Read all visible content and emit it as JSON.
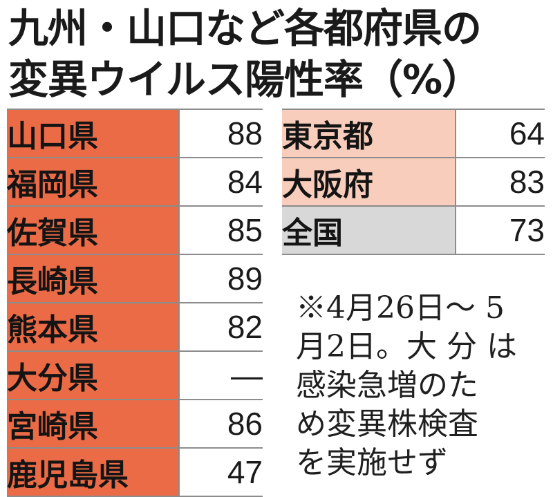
{
  "title": {
    "line1": "九州・山口など各都府県の",
    "line2": "変異ウイルス陽性率（%）"
  },
  "colors": {
    "kyushu_fill": "#ec6b47",
    "metro_fill": "#f8cdbb",
    "national_fill": "#d8d8d8",
    "rule": "#8c8c8c"
  },
  "left_table": [
    {
      "name": "山口県",
      "value": "88"
    },
    {
      "name": "福岡県",
      "value": "84"
    },
    {
      "name": "佐賀県",
      "value": "85"
    },
    {
      "name": "長崎県",
      "value": "89"
    },
    {
      "name": "熊本県",
      "value": "82"
    },
    {
      "name": "大分県",
      "value": "―"
    },
    {
      "name": "宮崎県",
      "value": "86"
    },
    {
      "name": "鹿児島県",
      "value": "47"
    }
  ],
  "right_table": [
    {
      "name": "東京都",
      "value": "64"
    },
    {
      "name": "大阪府",
      "value": "83"
    },
    {
      "name": "全国",
      "value": "73"
    }
  ],
  "note": "※4月26日～ 5\n月2日。大 分 は\n感染急増のた\nめ変異株検査\nを実施せず"
}
